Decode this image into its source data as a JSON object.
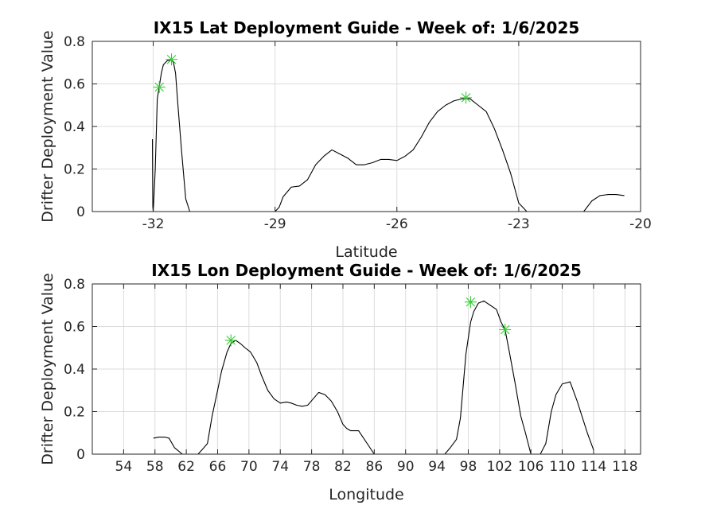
{
  "chart_data": [
    {
      "type": "line",
      "title": "IX15 Lat Deployment Guide - Week of: 1/6/2025",
      "xlabel": "Latitude",
      "ylabel": "Drifter Deployment Value",
      "xlim": [
        -33.5,
        -20
      ],
      "ylim": [
        0,
        0.8
      ],
      "xticks": [
        -32,
        -29,
        -26,
        -23,
        -20
      ],
      "xtick_labels": [
        "-32",
        "-29",
        "-26",
        "-23",
        "-20"
      ],
      "yticks": [
        0,
        0.2,
        0.4,
        0.6,
        0.8
      ],
      "ytick_labels": [
        "0",
        "0.2",
        "0.4",
        "0.6",
        "0.8"
      ],
      "grid": true,
      "line_color": "#000000",
      "marker_color": "#33cc33",
      "series": [
        {
          "x": [
            -32.02,
            -32.01,
            -32.0,
            -31.95,
            -31.9,
            -31.85,
            -31.8,
            -31.75,
            -31.7,
            -31.65,
            -31.6,
            -31.55,
            -31.5,
            -31.45,
            -31.4,
            -31.3,
            -31.2,
            -31.1,
            -31.0,
            -30.8,
            -30.5,
            -30.0,
            -29.5,
            -29.0,
            -28.9,
            -28.8,
            -28.6,
            -28.4,
            -28.2,
            -28.0,
            -27.8,
            -27.6,
            -27.4,
            -27.2,
            -27.0,
            -26.8,
            -26.6,
            -26.4,
            -26.2,
            -26.0,
            -25.8,
            -25.6,
            -25.4,
            -25.2,
            -25.0,
            -24.8,
            -24.6,
            -24.4,
            -24.2,
            -24.0,
            -23.8,
            -23.6,
            -23.4,
            -23.2,
            -23.0,
            -22.8,
            -22.6,
            -22.4,
            -22.2,
            -22.0,
            -21.8,
            -21.6,
            -21.4,
            -21.2,
            -21.0,
            -20.8,
            -20.6,
            -20.4
          ],
          "y": [
            0.34,
            0.02,
            0.0,
            0.2,
            0.53,
            0.59,
            0.65,
            0.69,
            0.7,
            0.71,
            0.71,
            0.715,
            0.7,
            0.65,
            0.52,
            0.28,
            0.06,
            0.0,
            0.0,
            0.0,
            0.0,
            0.0,
            0.0,
            0.0,
            0.02,
            0.07,
            0.115,
            0.12,
            0.15,
            0.22,
            0.26,
            0.29,
            0.27,
            0.25,
            0.22,
            0.22,
            0.23,
            0.245,
            0.245,
            0.24,
            0.26,
            0.29,
            0.35,
            0.42,
            0.47,
            0.5,
            0.52,
            0.53,
            0.53,
            0.5,
            0.47,
            0.39,
            0.29,
            0.18,
            0.04,
            0.0,
            0.0,
            0.0,
            0.0,
            0.0,
            0.0,
            0.0,
            0.0,
            0.05,
            0.075,
            0.08,
            0.08,
            0.075
          ]
        }
      ],
      "markers": [
        {
          "x": -31.85,
          "y": 0.585
        },
        {
          "x": -31.55,
          "y": 0.715
        },
        {
          "x": -24.3,
          "y": 0.535
        }
      ]
    },
    {
      "type": "line",
      "title": "IX15 Lon Deployment Guide - Week of: 1/6/2025",
      "xlabel": "Longitude",
      "ylabel": "Drifter Deployment Value",
      "xlim": [
        50,
        120
      ],
      "ylim": [
        0,
        0.8
      ],
      "xticks": [
        54,
        58,
        62,
        66,
        70,
        74,
        78,
        82,
        86,
        90,
        94,
        98,
        102,
        106,
        110,
        114,
        118
      ],
      "xtick_labels": [
        "54",
        "58",
        "62",
        "66",
        "70",
        "74",
        "78",
        "82",
        "86",
        "90",
        "94",
        "98",
        "102",
        "106",
        "110",
        "114",
        "118"
      ],
      "yticks": [
        0,
        0.2,
        0.4,
        0.6,
        0.8
      ],
      "ytick_labels": [
        "0",
        "0.2",
        "0.4",
        "0.6",
        "0.8"
      ],
      "grid": true,
      "line_color": "#000000",
      "marker_color": "#33cc33",
      "series": [
        {
          "x": [
            57.8,
            58.5,
            59.3,
            59.8,
            60.5,
            61.5,
            62.5,
            63.5,
            64.0,
            64.7,
            65.3,
            66.0,
            66.5,
            67.2,
            67.7,
            68.3,
            68.9,
            69.5,
            70.2,
            71.0,
            71.6,
            72.4,
            73.2,
            74.0,
            74.8,
            75.4,
            76.1,
            76.8,
            77.5,
            78.2,
            78.9,
            79.7,
            80.5,
            81.3,
            82.0,
            82.5,
            83.0,
            83.5,
            84.0,
            86.0,
            90.0,
            92.0,
            94.0,
            95.0,
            95.7,
            96.5,
            97.0,
            97.7,
            98.3,
            98.7,
            99.3,
            100.0,
            100.8,
            101.6,
            102.2,
            102.7,
            103.3,
            104.0,
            104.7,
            105.3,
            106.0,
            106.5,
            107.2,
            107.9,
            108.6,
            109.2,
            110.0,
            111.0,
            111.9,
            113.2,
            114.0
          ],
          "y": [
            0.075,
            0.08,
            0.08,
            0.075,
            0.03,
            0.0,
            0.0,
            0.0,
            0.02,
            0.05,
            0.18,
            0.3,
            0.39,
            0.48,
            0.52,
            0.535,
            0.52,
            0.5,
            0.48,
            0.43,
            0.37,
            0.3,
            0.26,
            0.24,
            0.245,
            0.24,
            0.23,
            0.225,
            0.23,
            0.26,
            0.29,
            0.28,
            0.25,
            0.2,
            0.14,
            0.12,
            0.11,
            0.11,
            0.11,
            0.0,
            0.0,
            0.0,
            0.0,
            0.0,
            0.03,
            0.07,
            0.17,
            0.47,
            0.62,
            0.67,
            0.71,
            0.72,
            0.7,
            0.68,
            0.62,
            0.585,
            0.47,
            0.33,
            0.18,
            0.1,
            0.0,
            0.0,
            0.0,
            0.05,
            0.2,
            0.28,
            0.33,
            0.34,
            0.25,
            0.1,
            0.02
          ]
        }
      ],
      "markers": [
        {
          "x": 67.7,
          "y": 0.535
        },
        {
          "x": 98.3,
          "y": 0.715
        },
        {
          "x": 102.7,
          "y": 0.585
        }
      ]
    }
  ]
}
